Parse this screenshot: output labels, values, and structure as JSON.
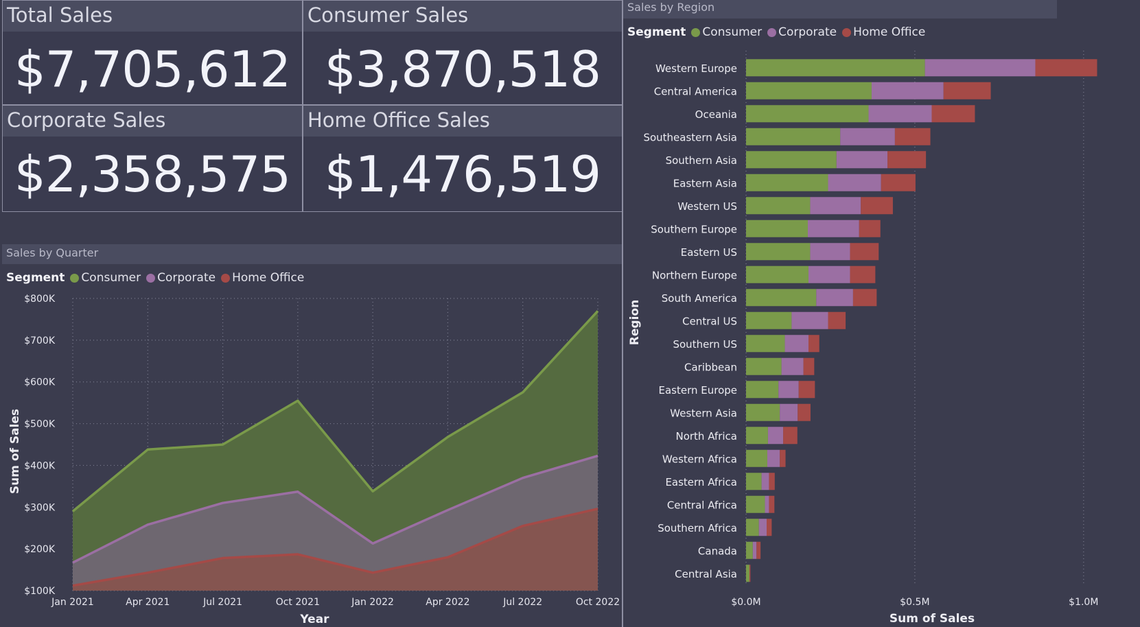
{
  "kpis": {
    "total": {
      "title": "Total Sales",
      "value": "$7,705,612"
    },
    "consumer": {
      "title": "Consumer Sales",
      "value": "$3,870,518"
    },
    "corporate": {
      "title": "Corporate Sales",
      "value": "$2,358,575"
    },
    "home_office": {
      "title": "Home Office Sales",
      "value": "$1,476,519"
    }
  },
  "quarter_panel": {
    "title": "Sales by Quarter"
  },
  "region_panel": {
    "title": "Sales by Region"
  },
  "legend": {
    "title": "Segment",
    "items": [
      {
        "label": "Consumer",
        "color": "#7a9a4a"
      },
      {
        "label": "Corporate",
        "color": "#9b6fa3"
      },
      {
        "label": "Home Office",
        "color": "#a54a47"
      }
    ]
  },
  "chart_data": [
    {
      "type": "area",
      "title": "Sales by Quarter",
      "xlabel": "Year",
      "ylabel": "Sum of Sales",
      "ylim": [
        100000,
        800000
      ],
      "y_ticks": [
        "$100K",
        "$200K",
        "$300K",
        "$400K",
        "$500K",
        "$600K",
        "$700K",
        "$800K"
      ],
      "x_tick_labels": [
        "Jan 2021",
        "Apr 2021",
        "Jul 2021",
        "Oct 2021",
        "Jan 2022",
        "Apr 2022",
        "Jul 2022",
        "Oct 2022"
      ],
      "categories": [
        "Jan 2021",
        "Apr 2021",
        "Jul 2021",
        "Oct 2021",
        "Jan 2022",
        "Apr 2022",
        "Jul 2022",
        "Oct 2022"
      ],
      "grid": true,
      "legend_position": "top-left",
      "series": [
        {
          "name": "Consumer",
          "color": "#7a9a4a",
          "fill": "#556b40",
          "values": [
            290000,
            438000,
            450000,
            555000,
            338000,
            468000,
            575000,
            770000
          ]
        },
        {
          "name": "Corporate",
          "color": "#9b6fa3",
          "fill": "#6e6770",
          "values": [
            167000,
            258000,
            310000,
            337000,
            213000,
            293000,
            370000,
            423000
          ]
        },
        {
          "name": "Home Office",
          "color": "#a54a47",
          "fill": "#855550",
          "values": [
            112000,
            143000,
            178000,
            187000,
            143000,
            180000,
            255000,
            296000
          ]
        }
      ]
    },
    {
      "type": "bar",
      "orientation": "horizontal",
      "stacked": true,
      "title": "Sales by Region",
      "xlabel": "Sum of Sales",
      "ylabel": "Region",
      "xlim": [
        0,
        1100000
      ],
      "x_ticks": [
        "$0.0M",
        "$0.5M",
        "$1.0M"
      ],
      "x_tick_values": [
        0,
        500000,
        1000000
      ],
      "grid": true,
      "legend_position": "top-left",
      "categories": [
        "Western Europe",
        "Central America",
        "Oceania",
        "Southeastern Asia",
        "Southern Asia",
        "Eastern Asia",
        "Western US",
        "Southern Europe",
        "Eastern US",
        "Northern Europe",
        "South America",
        "Central US",
        "Southern US",
        "Caribbean",
        "Eastern Europe",
        "Western Asia",
        "North Africa",
        "Western Africa",
        "Eastern Africa",
        "Central Africa",
        "Southern Africa",
        "Canada",
        "Central Asia"
      ],
      "series": [
        {
          "name": "Consumer",
          "color": "#7a9a4a",
          "values": [
            530000,
            372000,
            363000,
            279000,
            268000,
            243000,
            190000,
            183000,
            190000,
            185000,
            208000,
            135000,
            115000,
            105000,
            96000,
            100000,
            65000,
            63000,
            46000,
            56000,
            38000,
            20000,
            10000
          ]
        },
        {
          "name": "Corporate",
          "color": "#9b6fa3",
          "values": [
            327000,
            213000,
            187000,
            162000,
            151000,
            157000,
            150000,
            152000,
            118000,
            123000,
            109000,
            108000,
            70000,
            65000,
            60000,
            53000,
            45000,
            37000,
            22000,
            12000,
            23000,
            11000,
            0
          ]
        },
        {
          "name": "Home Office",
          "color": "#a54a47",
          "values": [
            183000,
            140000,
            128000,
            105000,
            114000,
            102000,
            95000,
            63000,
            85000,
            75000,
            70000,
            52000,
            32000,
            32000,
            48000,
            38000,
            42000,
            17000,
            17000,
            16000,
            15000,
            12000,
            3000
          ]
        }
      ]
    }
  ]
}
